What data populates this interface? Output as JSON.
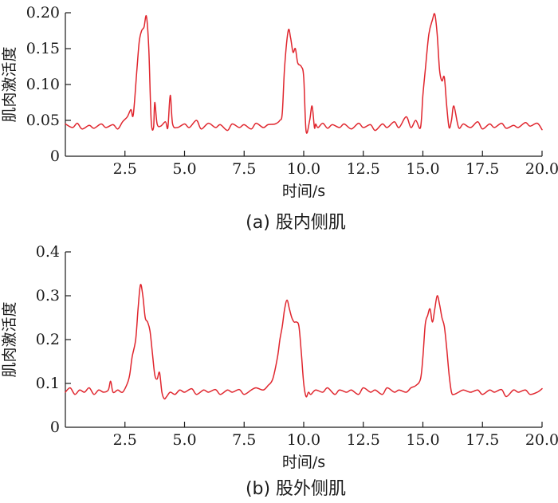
{
  "chart_data": [
    {
      "type": "line",
      "caption": "(a) 股内侧肌",
      "xlabel": "时间/s",
      "ylabel": "肌肉激活度",
      "xlim": [
        0,
        20
      ],
      "ylim": [
        0,
        0.2
      ],
      "xticks": [
        2.5,
        5,
        7.5,
        10,
        12.5,
        15,
        17.5,
        20
      ],
      "xtick_labels": [
        "2.5",
        "5.0",
        "7.5",
        "10.0",
        "12.5",
        "15.0",
        "17.5",
        "20.0"
      ],
      "yticks": [
        0,
        0.05,
        0.1,
        0.15,
        0.2
      ],
      "ytick_labels": [
        "0",
        "0.05",
        "0.10",
        "0.15",
        "0.20"
      ],
      "color": "#e0262e",
      "grid": false,
      "series": [
        {
          "x": [
            0.0,
            0.3,
            0.5,
            0.7,
            1.0,
            1.2,
            1.5,
            1.7,
            2.0,
            2.2,
            2.4,
            2.6,
            2.75,
            2.85,
            3.0,
            3.1,
            3.2,
            3.3,
            3.4,
            3.5,
            3.6,
            3.7,
            3.75,
            3.85,
            4.0,
            4.2,
            4.3,
            4.4,
            4.5,
            4.7,
            5.0,
            5.2,
            5.5,
            5.7,
            6.0,
            6.3,
            6.5,
            6.8,
            7.0,
            7.3,
            7.5,
            7.8,
            8.0,
            8.3,
            8.5,
            8.8,
            9.0,
            9.1,
            9.2,
            9.35,
            9.45,
            9.55,
            9.65,
            9.75,
            9.9,
            10.0,
            10.1,
            10.25,
            10.35,
            10.45,
            10.5,
            10.6,
            10.8,
            11.0,
            11.2,
            11.5,
            11.7,
            12.0,
            12.3,
            12.5,
            12.8,
            13.0,
            13.3,
            13.5,
            13.8,
            14.0,
            14.3,
            14.5,
            14.7,
            14.9,
            15.0,
            15.1,
            15.25,
            15.4,
            15.5,
            15.6,
            15.7,
            15.8,
            15.9,
            16.0,
            16.1,
            16.2,
            16.3,
            16.5,
            16.7,
            17.0,
            17.3,
            17.5,
            17.8,
            18.0,
            18.3,
            18.5,
            18.8,
            19.0,
            19.3,
            19.5,
            19.8,
            20.0
          ],
          "y": [
            0.045,
            0.04,
            0.046,
            0.038,
            0.043,
            0.039,
            0.045,
            0.04,
            0.044,
            0.038,
            0.048,
            0.055,
            0.065,
            0.058,
            0.12,
            0.16,
            0.175,
            0.18,
            0.195,
            0.15,
            0.05,
            0.04,
            0.075,
            0.045,
            0.042,
            0.048,
            0.04,
            0.085,
            0.045,
            0.04,
            0.045,
            0.04,
            0.05,
            0.038,
            0.046,
            0.04,
            0.044,
            0.036,
            0.045,
            0.04,
            0.044,
            0.038,
            0.046,
            0.04,
            0.044,
            0.045,
            0.05,
            0.06,
            0.125,
            0.175,
            0.165,
            0.145,
            0.15,
            0.13,
            0.125,
            0.11,
            0.035,
            0.05,
            0.07,
            0.04,
            0.045,
            0.04,
            0.046,
            0.039,
            0.044,
            0.04,
            0.045,
            0.038,
            0.046,
            0.04,
            0.044,
            0.036,
            0.045,
            0.04,
            0.048,
            0.04,
            0.055,
            0.04,
            0.05,
            0.04,
            0.085,
            0.12,
            0.17,
            0.19,
            0.198,
            0.17,
            0.12,
            0.105,
            0.11,
            0.07,
            0.04,
            0.05,
            0.07,
            0.04,
            0.045,
            0.04,
            0.048,
            0.038,
            0.045,
            0.04,
            0.046,
            0.039,
            0.043,
            0.04,
            0.047,
            0.042,
            0.046,
            0.037
          ]
        }
      ]
    },
    {
      "type": "line",
      "caption": "(b) 股外侧肌",
      "xlabel": "时间/s",
      "ylabel": "肌肉激活度",
      "xlim": [
        0,
        20
      ],
      "ylim": [
        0,
        0.4
      ],
      "xticks": [
        2.5,
        5,
        7.5,
        10,
        12.5,
        15,
        17.5,
        20
      ],
      "xtick_labels": [
        "2.5",
        "5.0",
        "7.5",
        "10.0",
        "12.5",
        "15.0",
        "17.5",
        "20.0"
      ],
      "yticks": [
        0,
        0.1,
        0.2,
        0.3,
        0.4
      ],
      "ytick_labels": [
        "0",
        "0.1",
        "0.2",
        "0.3",
        "0.4"
      ],
      "color": "#e0262e",
      "grid": false,
      "series": [
        {
          "x": [
            0.0,
            0.2,
            0.4,
            0.6,
            0.8,
            1.0,
            1.2,
            1.4,
            1.6,
            1.8,
            1.9,
            2.0,
            2.2,
            2.4,
            2.6,
            2.7,
            2.8,
            2.95,
            3.05,
            3.15,
            3.25,
            3.35,
            3.45,
            3.55,
            3.65,
            3.75,
            3.85,
            3.95,
            4.05,
            4.15,
            4.25,
            4.4,
            4.6,
            4.8,
            5.0,
            5.3,
            5.5,
            5.8,
            6.0,
            6.3,
            6.5,
            6.8,
            7.0,
            7.3,
            7.5,
            7.8,
            8.0,
            8.3,
            8.5,
            8.7,
            8.9,
            9.0,
            9.1,
            9.2,
            9.3,
            9.4,
            9.5,
            9.6,
            9.7,
            9.8,
            9.9,
            10.0,
            10.1,
            10.2,
            10.3,
            10.5,
            10.8,
            11.0,
            11.3,
            11.5,
            11.8,
            12.0,
            12.3,
            12.5,
            12.8,
            13.0,
            13.3,
            13.5,
            13.8,
            14.0,
            14.3,
            14.5,
            14.7,
            14.9,
            15.0,
            15.1,
            15.2,
            15.3,
            15.4,
            15.5,
            15.6,
            15.7,
            15.8,
            15.9,
            16.0,
            16.1,
            16.2,
            16.3,
            16.5,
            16.7,
            17.0,
            17.3,
            17.5,
            17.8,
            18.0,
            18.3,
            18.5,
            18.8,
            19.0,
            19.3,
            19.5,
            19.8,
            20.0
          ],
          "y": [
            0.08,
            0.09,
            0.075,
            0.085,
            0.08,
            0.09,
            0.075,
            0.085,
            0.08,
            0.085,
            0.105,
            0.08,
            0.085,
            0.08,
            0.1,
            0.12,
            0.16,
            0.2,
            0.27,
            0.325,
            0.3,
            0.25,
            0.24,
            0.22,
            0.17,
            0.12,
            0.11,
            0.125,
            0.08,
            0.065,
            0.07,
            0.08,
            0.075,
            0.085,
            0.08,
            0.088,
            0.075,
            0.085,
            0.08,
            0.086,
            0.075,
            0.085,
            0.08,
            0.086,
            0.075,
            0.085,
            0.09,
            0.085,
            0.095,
            0.11,
            0.16,
            0.2,
            0.23,
            0.27,
            0.29,
            0.27,
            0.25,
            0.24,
            0.24,
            0.23,
            0.17,
            0.1,
            0.07,
            0.08,
            0.075,
            0.085,
            0.08,
            0.09,
            0.075,
            0.085,
            0.08,
            0.085,
            0.075,
            0.09,
            0.08,
            0.085,
            0.075,
            0.09,
            0.08,
            0.085,
            0.08,
            0.09,
            0.095,
            0.11,
            0.16,
            0.235,
            0.255,
            0.27,
            0.24,
            0.27,
            0.3,
            0.28,
            0.25,
            0.23,
            0.18,
            0.12,
            0.08,
            0.075,
            0.08,
            0.085,
            0.08,
            0.085,
            0.075,
            0.085,
            0.08,
            0.086,
            0.07,
            0.085,
            0.08,
            0.085,
            0.075,
            0.08,
            0.088
          ]
        }
      ]
    }
  ]
}
